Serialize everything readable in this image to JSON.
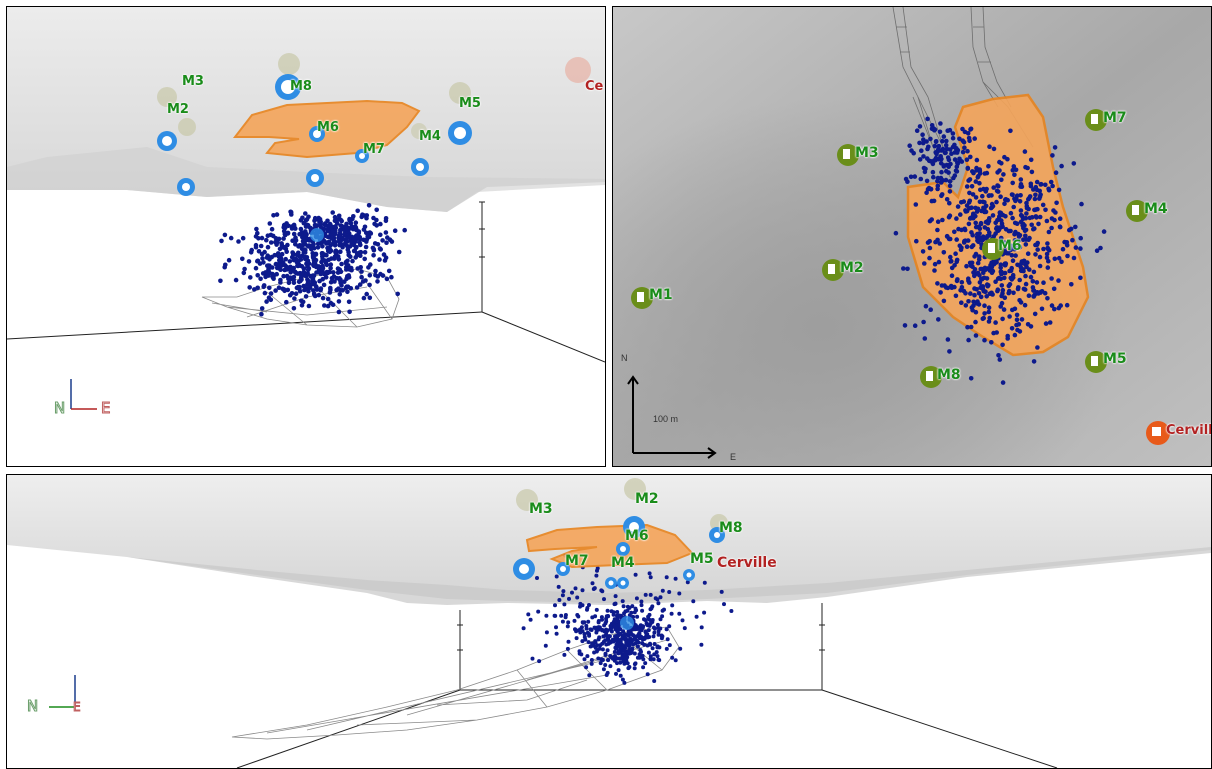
{
  "panels": {
    "view1": {
      "stations": [
        "M2",
        "M3",
        "M4",
        "M5",
        "M6",
        "M7",
        "M8"
      ],
      "town": "Ce",
      "axis": {
        "north": "N",
        "east": "E"
      }
    },
    "view2": {
      "stations": [
        "M1",
        "M2",
        "M3",
        "M4",
        "M5",
        "M6",
        "M7",
        "M8"
      ],
      "town": "Cerville",
      "north_label": "N",
      "east_label": "E",
      "scale_label": "100 m"
    },
    "view3": {
      "stations": [
        "M2",
        "M3",
        "M4",
        "M5",
        "M6",
        "M7",
        "M8"
      ],
      "town": "Cerville",
      "axis": {
        "north": "N",
        "east": "E"
      }
    }
  },
  "colors": {
    "event": "#0d1a8c",
    "zone_fill": "#f5a55a",
    "zone_stroke": "#e8841e",
    "station_3d": "#2f8de4",
    "station_green": "#6a8e1a",
    "town": "#e85a1a"
  }
}
